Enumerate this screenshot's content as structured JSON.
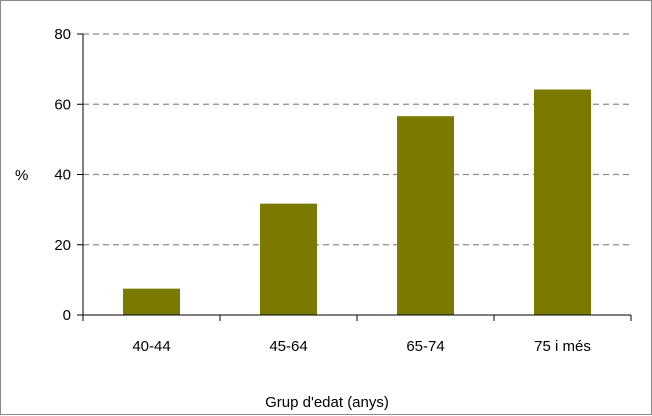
{
  "chart_data": {
    "type": "bar",
    "title": "",
    "xlabel": "Grup d'edat (anys)",
    "ylabel": "%",
    "categories": [
      "40-44",
      "45-64",
      "65-74",
      "75 i més"
    ],
    "values": [
      7.5,
      31.7,
      56.6,
      64.2
    ],
    "ylim": [
      0,
      80
    ],
    "yticks": [
      "0",
      "20",
      "40",
      "60",
      "80"
    ],
    "ytick_values": [
      0,
      20,
      40,
      60,
      80
    ],
    "grid": "horizontal dashed",
    "legend": "none",
    "bar_color": "#7a7a00",
    "grid_color": "#8c8c8c",
    "axis_color": "#000000"
  }
}
